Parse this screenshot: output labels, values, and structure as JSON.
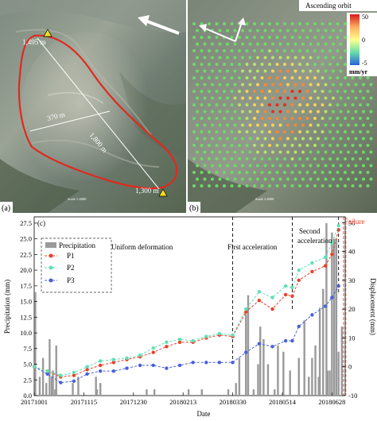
{
  "panel_a": {
    "label": "(a)",
    "elev_top": "1,495 m",
    "elev_bottom": "1,300 m",
    "length_label": "1,800 m",
    "width_label": "370 m",
    "scale_text": "Scale 1:4000"
  },
  "panel_b": {
    "label": "(b)",
    "orbit_label": "Ascending orbit",
    "unit": "mm/yr",
    "colorbar_ticks": [
      "50",
      "0",
      "-5"
    ],
    "scale_text": "Scale 1:4000"
  },
  "chart_data": {
    "type": "bar+line",
    "panel_label": "(c)",
    "xlabel": "Date",
    "ylabel_left": "Precipitation (mm)",
    "ylabel_right": "Displacement (mm)",
    "x_ticks": [
      "20171001",
      "20171115",
      "20171230",
      "20180213",
      "20180330",
      "20180514",
      "20180628"
    ],
    "y_left_ticks": [
      "0.0",
      "2.5",
      "5.0",
      "7.5",
      "10.0",
      "12.5",
      "15.0",
      "17.5",
      "20.0",
      "22.5",
      "25.0",
      "27.5"
    ],
    "y_right_ticks": [
      "-10",
      "0",
      "10",
      "20",
      "30",
      "40",
      "50"
    ],
    "y_left_range": [
      0,
      28.5
    ],
    "y_right_range": [
      -10,
      52
    ],
    "x_range_days": [
      0,
      282
    ],
    "annotations": {
      "uniform": "Uniform deformation",
      "first": "First acceleration",
      "second_line1": "Second",
      "second_line2": "acceleration",
      "failure": "Failure"
    },
    "phase_boundaries_days": [
      180,
      234,
      276
    ],
    "legend": [
      "Precipitation",
      "P1",
      "P2",
      "P3"
    ],
    "colors": {
      "precip": "#9a9a9a",
      "P1": "#e8402a",
      "P2": "#5fe0b5",
      "P3": "#4a60d8",
      "failure": "#e8402a"
    },
    "displacement": {
      "days": [
        0,
        12,
        24,
        36,
        48,
        60,
        72,
        84,
        96,
        108,
        120,
        132,
        144,
        156,
        168,
        180,
        192,
        204,
        216,
        228,
        234,
        240,
        252,
        264,
        270,
        276
      ],
      "P1": [
        0,
        -1.5,
        -3.5,
        -3,
        -1,
        0.5,
        1.5,
        2.5,
        3.5,
        5,
        7,
        8.5,
        8.5,
        10,
        11,
        10.5,
        19,
        23,
        20,
        25,
        24.5,
        30,
        33,
        35,
        39,
        47.5
      ],
      "P2": [
        0,
        -1.5,
        -3,
        -2,
        0,
        2,
        2.5,
        3,
        4,
        6.5,
        8.5,
        9.5,
        9,
        10.5,
        11.5,
        11,
        20,
        26,
        24,
        28,
        27.5,
        33.5,
        36,
        38,
        43,
        49
      ],
      "P3": [
        0,
        -2.5,
        -5.5,
        -5,
        -2.5,
        -1.5,
        -1.5,
        -0.5,
        0.5,
        0.5,
        -0.5,
        0.5,
        1.5,
        1.5,
        1.5,
        1.5,
        5,
        8,
        7,
        9,
        9,
        14,
        18,
        21,
        24,
        28
      ]
    },
    "precipitation": {
      "days": [
        1,
        5,
        8,
        11,
        14,
        16,
        17,
        19,
        20,
        35,
        40,
        56,
        57,
        60,
        102,
        109,
        140,
        152,
        176,
        183,
        186,
        192,
        194,
        199,
        203,
        205,
        208,
        212,
        218,
        221,
        226,
        232,
        240,
        245,
        249,
        252,
        255,
        258,
        259,
        262,
        265,
        266,
        268,
        270,
        272,
        274,
        276,
        279
      ],
      "values": [
        16.5,
        3,
        6,
        2,
        9,
        3,
        4,
        1,
        8,
        2,
        3,
        3,
        1,
        2,
        1,
        1,
        1,
        1,
        1,
        2,
        6,
        13,
        16,
        1,
        5,
        11,
        9,
        5,
        1,
        8,
        7,
        4,
        6,
        12,
        3,
        6,
        8,
        3,
        14,
        17,
        27.5,
        4,
        4,
        26,
        25,
        25,
        7,
        11
      ]
    }
  }
}
